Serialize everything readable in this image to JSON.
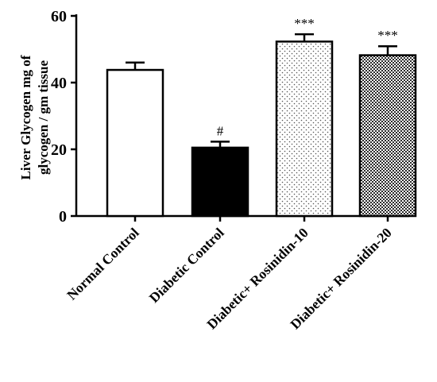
{
  "chart_data": {
    "type": "bar",
    "title": "",
    "xlabel": "",
    "ylabel_lines": [
      "Liver Glycogen mg of",
      "glycogen / gm tissue"
    ],
    "ylim": [
      0,
      60
    ],
    "yticks": [
      0,
      20,
      40,
      60
    ],
    "categories": [
      "Normal Control",
      "Diabetic Control",
      "Diabetic+ Rosinidin-10",
      "Diabetic+ Rosinidin-20"
    ],
    "values": [
      43.8,
      20.5,
      52.3,
      48.2
    ],
    "errors": [
      2.2,
      1.8,
      2.2,
      2.7
    ],
    "annotations": [
      "",
      "#",
      "***",
      "***"
    ],
    "fills": [
      "white",
      "black",
      "sparse-dots",
      "dense-checker"
    ],
    "grid": false,
    "legend": "none"
  }
}
